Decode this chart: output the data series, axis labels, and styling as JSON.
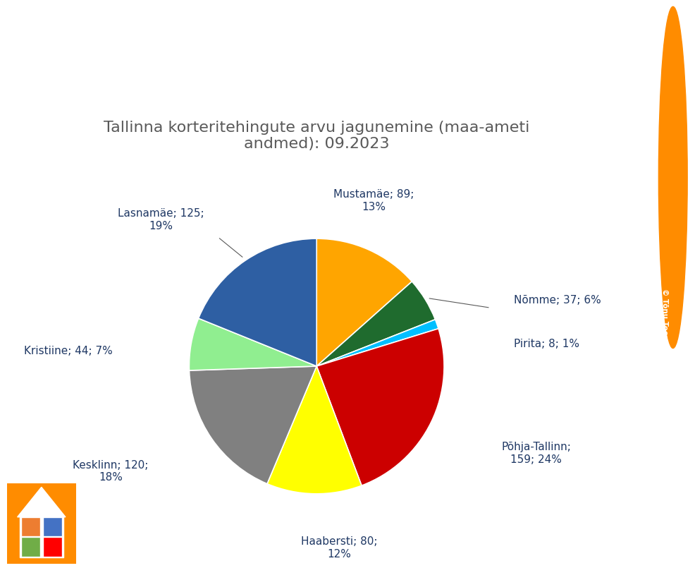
{
  "title": "Tallinna korteritehingute arvu jagunemine (maa-ameti\nandmed): 09.2023",
  "labels": [
    "Mustamäe",
    "Nõmme",
    "Pirita",
    "Põhja-Tallinn",
    "Haabersti",
    "Kesklinn",
    "Kristiine",
    "Lasnamäe"
  ],
  "values": [
    89,
    37,
    8,
    159,
    80,
    120,
    44,
    125
  ],
  "colors": [
    "#FFA500",
    "#1F6B2E",
    "#00BFFF",
    "#CC0000",
    "#FFFF00",
    "#808080",
    "#90EE90",
    "#2E5FA3"
  ],
  "label_texts": [
    "Mustamäe; 89;\n13%",
    "Nõmme; 37; 6%",
    "Pirita; 8; 1%",
    "Põhja-Tallinn;\n159; 24%",
    "Haabersti; 80;\n12%",
    "Kesklinn; 120;\n18%",
    "Kristiine; 44; 7%",
    "Lasnamäe; 125;\n19%"
  ],
  "background_color": "#FFFFFF",
  "title_color": "#595959",
  "title_fontsize": 16,
  "label_fontsize": 11,
  "label_color": "#1F3864",
  "connector_labels": [
    "Lasnamäe",
    "Nõmme"
  ],
  "watermark_text": "© Tõnu Toompark, ADAUR.EE",
  "watermark_bg": "#808080",
  "icon_bg": "#FF8C00",
  "icon_house_color": "#FFFFFF",
  "puzzle_colors": [
    "#ED7D31",
    "#4472C4",
    "#70AD47",
    "#FF0000"
  ]
}
